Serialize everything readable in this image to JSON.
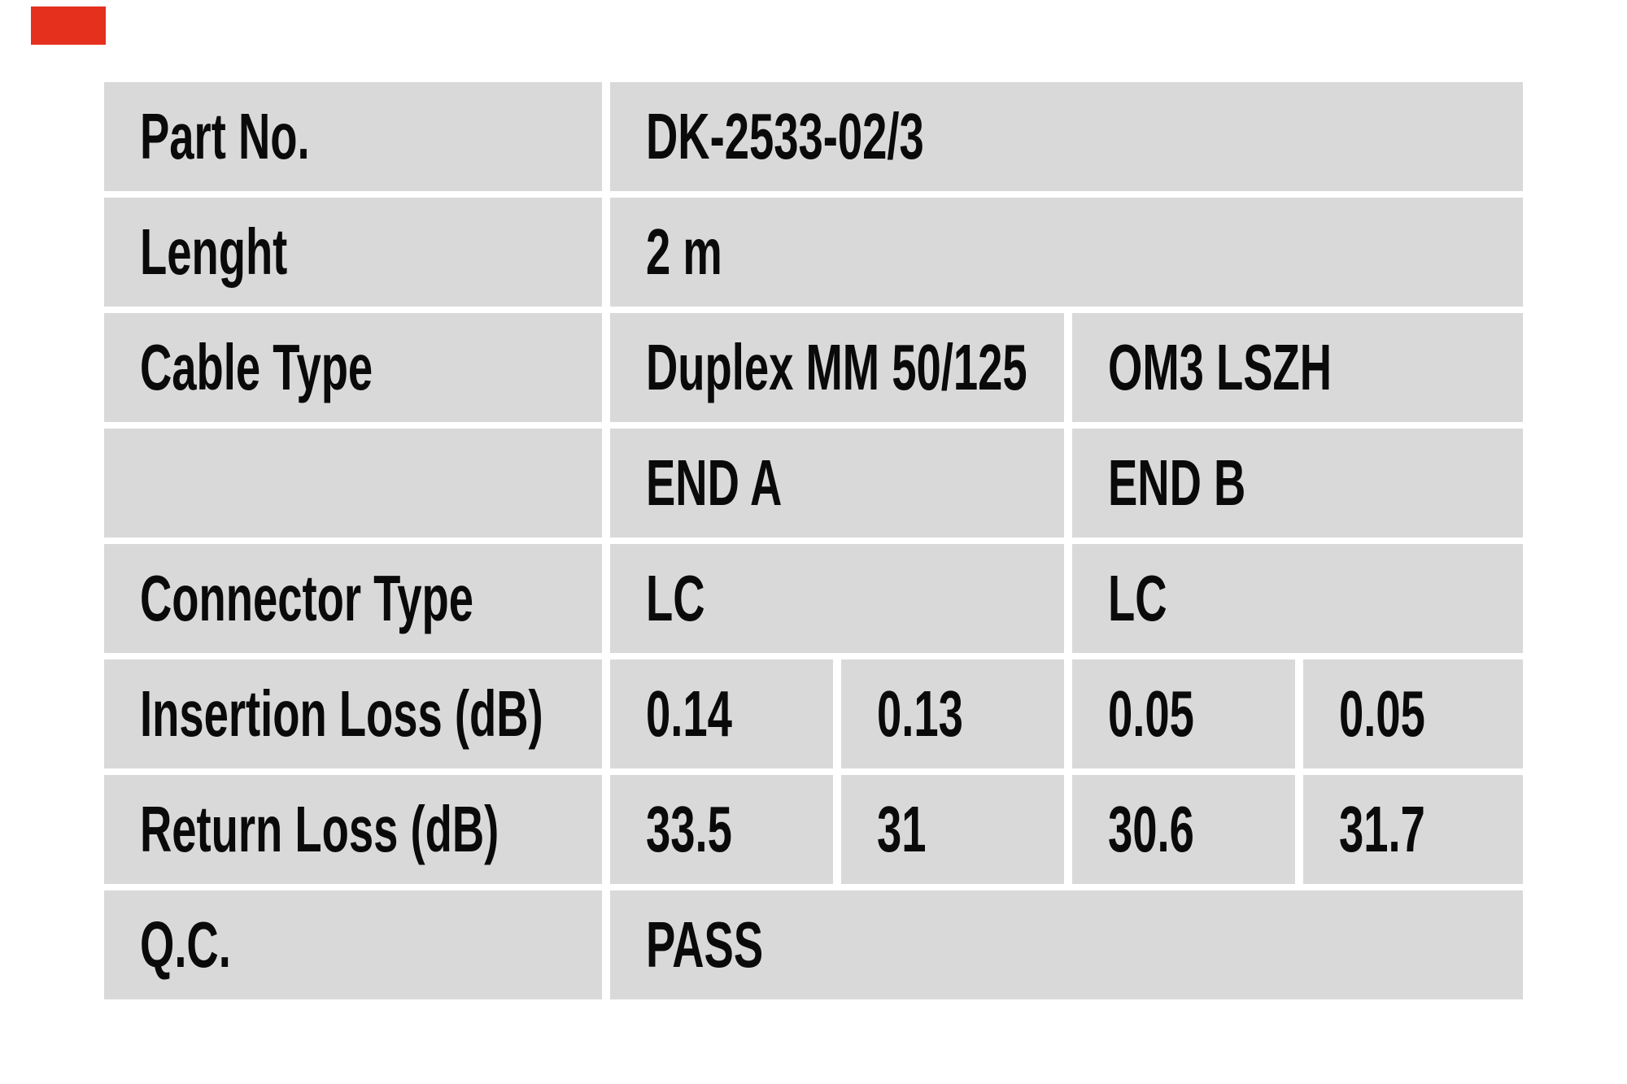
{
  "colors": {
    "page_background": "#ffffff",
    "cell_background": "#d9d9d9",
    "text": "#0a0a0a",
    "logo_red": "#e5301d"
  },
  "logo": {
    "name": "red-logo-block"
  },
  "table": {
    "rows": [
      {
        "label": "Part No.",
        "values": [
          {
            "text": "DK-2533-02/3"
          }
        ]
      },
      {
        "label": "Lenght",
        "values": [
          {
            "text": "2 m"
          }
        ]
      },
      {
        "label": "Cable Type",
        "values": [
          {
            "text": "Duplex MM 50/125"
          },
          {
            "text": "OM3 LSZH"
          }
        ]
      },
      {
        "label": "",
        "values": [
          {
            "text": "END A"
          },
          {
            "text": "END B"
          }
        ]
      },
      {
        "label": "Connector Type",
        "values": [
          {
            "text": "LC"
          },
          {
            "text": "LC"
          }
        ]
      },
      {
        "label": "Insertion Loss (dB)",
        "values": [
          {
            "text": "0.14"
          },
          {
            "text": "0.13"
          },
          {
            "text": "0.05"
          },
          {
            "text": "0.05"
          }
        ]
      },
      {
        "label": "Return Loss (dB)",
        "values": [
          {
            "text": "33.5"
          },
          {
            "text": "31"
          },
          {
            "text": "30.6"
          },
          {
            "text": "31.7"
          }
        ]
      },
      {
        "label": "Q.C.",
        "values": [
          {
            "text": "PASS"
          }
        ]
      }
    ]
  }
}
